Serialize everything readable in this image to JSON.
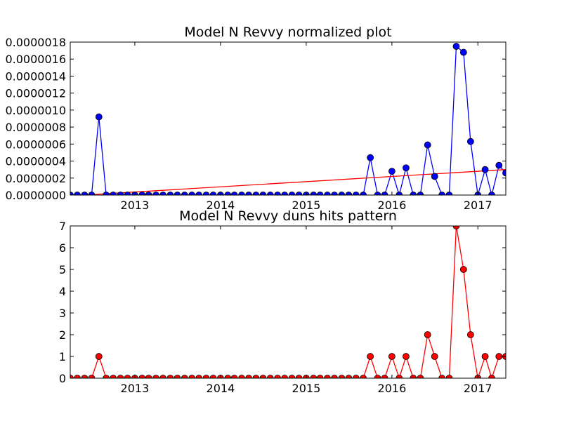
{
  "chart_data": [
    {
      "type": "line",
      "title": "Model N Revvy normalized plot",
      "xlabel": "",
      "ylabel": "",
      "x_axis": "date",
      "xlim": [
        "2012-04-01",
        "2017-04-30"
      ],
      "ylim": [
        0,
        1.8e-06
      ],
      "grid": false,
      "x_ticks": [
        "2013",
        "2014",
        "2015",
        "2016",
        "2017"
      ],
      "y_ticks": [
        "0.0000000",
        "0.0000002",
        "0.0000004",
        "0.0000006",
        "0.0000008",
        "0.0000010",
        "0.0000012",
        "0.0000014",
        "0.0000016",
        "0.0000018"
      ],
      "x": [
        "2012-04-01",
        "2012-05-01",
        "2012-06-01",
        "2012-07-01",
        "2012-08-01",
        "2012-09-01",
        "2012-10-01",
        "2012-11-01",
        "2012-12-01",
        "2013-01-01",
        "2013-02-01",
        "2013-03-01",
        "2013-04-01",
        "2013-05-01",
        "2013-06-01",
        "2013-07-01",
        "2013-08-01",
        "2013-09-01",
        "2013-10-01",
        "2013-11-01",
        "2013-12-01",
        "2014-01-01",
        "2014-02-01",
        "2014-03-01",
        "2014-04-01",
        "2014-05-01",
        "2014-06-01",
        "2014-07-01",
        "2014-08-01",
        "2014-09-01",
        "2014-10-01",
        "2014-11-01",
        "2014-12-01",
        "2015-01-01",
        "2015-02-01",
        "2015-03-01",
        "2015-04-01",
        "2015-05-01",
        "2015-06-01",
        "2015-07-01",
        "2015-08-01",
        "2015-09-01",
        "2015-10-01",
        "2015-11-01",
        "2015-12-01",
        "2016-01-01",
        "2016-02-01",
        "2016-03-01",
        "2016-04-01",
        "2016-05-01",
        "2016-06-01",
        "2016-07-01",
        "2016-08-01",
        "2016-09-01",
        "2016-10-01",
        "2016-11-01",
        "2016-12-01",
        "2017-01-01",
        "2017-02-01",
        "2017-03-01",
        "2017-04-01",
        "2017-04-30"
      ],
      "series": [
        {
          "color": "#0000ff",
          "marker_color": "#0000ff",
          "values": [
            0,
            0,
            0,
            0,
            9.2e-07,
            0,
            0,
            0,
            0,
            0,
            0,
            0,
            0,
            0,
            0,
            0,
            0,
            0,
            0,
            0,
            0,
            0,
            0,
            0,
            0,
            0,
            0,
            0,
            0,
            0,
            0,
            0,
            0,
            0,
            0,
            0,
            0,
            0,
            0,
            0,
            0,
            0,
            4.4e-07,
            0,
            0,
            2.8e-07,
            0,
            3.2e-07,
            0,
            0,
            5.9e-07,
            2.2e-07,
            0,
            0,
            1.75e-06,
            1.68e-06,
            6.3e-07,
            0,
            3e-07,
            0,
            3.5e-07,
            2.6e-07
          ]
        }
      ],
      "trend_line": {
        "color": "#ff0000",
        "x": [
          "2012-04-01",
          "2017-04-30"
        ],
        "y": [
          -1e-08,
          3e-07
        ]
      }
    },
    {
      "type": "line",
      "title": "Model N Revvy duns hits pattern",
      "xlabel": "",
      "ylabel": "",
      "x_axis": "date",
      "xlim": [
        "2012-04-01",
        "2017-04-30"
      ],
      "ylim": [
        0,
        7
      ],
      "grid": false,
      "x_ticks": [
        "2013",
        "2014",
        "2015",
        "2016",
        "2017"
      ],
      "y_ticks": [
        "0",
        "1",
        "2",
        "3",
        "4",
        "5",
        "6",
        "7"
      ],
      "x": [
        "2012-04-01",
        "2012-05-01",
        "2012-06-01",
        "2012-07-01",
        "2012-08-01",
        "2012-09-01",
        "2012-10-01",
        "2012-11-01",
        "2012-12-01",
        "2013-01-01",
        "2013-02-01",
        "2013-03-01",
        "2013-04-01",
        "2013-05-01",
        "2013-06-01",
        "2013-07-01",
        "2013-08-01",
        "2013-09-01",
        "2013-10-01",
        "2013-11-01",
        "2013-12-01",
        "2014-01-01",
        "2014-02-01",
        "2014-03-01",
        "2014-04-01",
        "2014-05-01",
        "2014-06-01",
        "2014-07-01",
        "2014-08-01",
        "2014-09-01",
        "2014-10-01",
        "2014-11-01",
        "2014-12-01",
        "2015-01-01",
        "2015-02-01",
        "2015-03-01",
        "2015-04-01",
        "2015-05-01",
        "2015-06-01",
        "2015-07-01",
        "2015-08-01",
        "2015-09-01",
        "2015-10-01",
        "2015-11-01",
        "2015-12-01",
        "2016-01-01",
        "2016-02-01",
        "2016-03-01",
        "2016-04-01",
        "2016-05-01",
        "2016-06-01",
        "2016-07-01",
        "2016-08-01",
        "2016-09-01",
        "2016-10-01",
        "2016-11-01",
        "2016-12-01",
        "2017-01-01",
        "2017-02-01",
        "2017-03-01",
        "2017-04-01",
        "2017-04-30"
      ],
      "series": [
        {
          "color": "#ff0000",
          "marker_color": "#ff0000",
          "values": [
            0,
            0,
            0,
            0,
            1,
            0,
            0,
            0,
            0,
            0,
            0,
            0,
            0,
            0,
            0,
            0,
            0,
            0,
            0,
            0,
            0,
            0,
            0,
            0,
            0,
            0,
            0,
            0,
            0,
            0,
            0,
            0,
            0,
            0,
            0,
            0,
            0,
            0,
            0,
            0,
            0,
            0,
            1,
            0,
            0,
            1,
            0,
            1,
            0,
            0,
            2,
            1,
            0,
            0,
            7,
            5,
            2,
            0,
            1,
            0,
            1,
            1
          ]
        }
      ]
    }
  ]
}
